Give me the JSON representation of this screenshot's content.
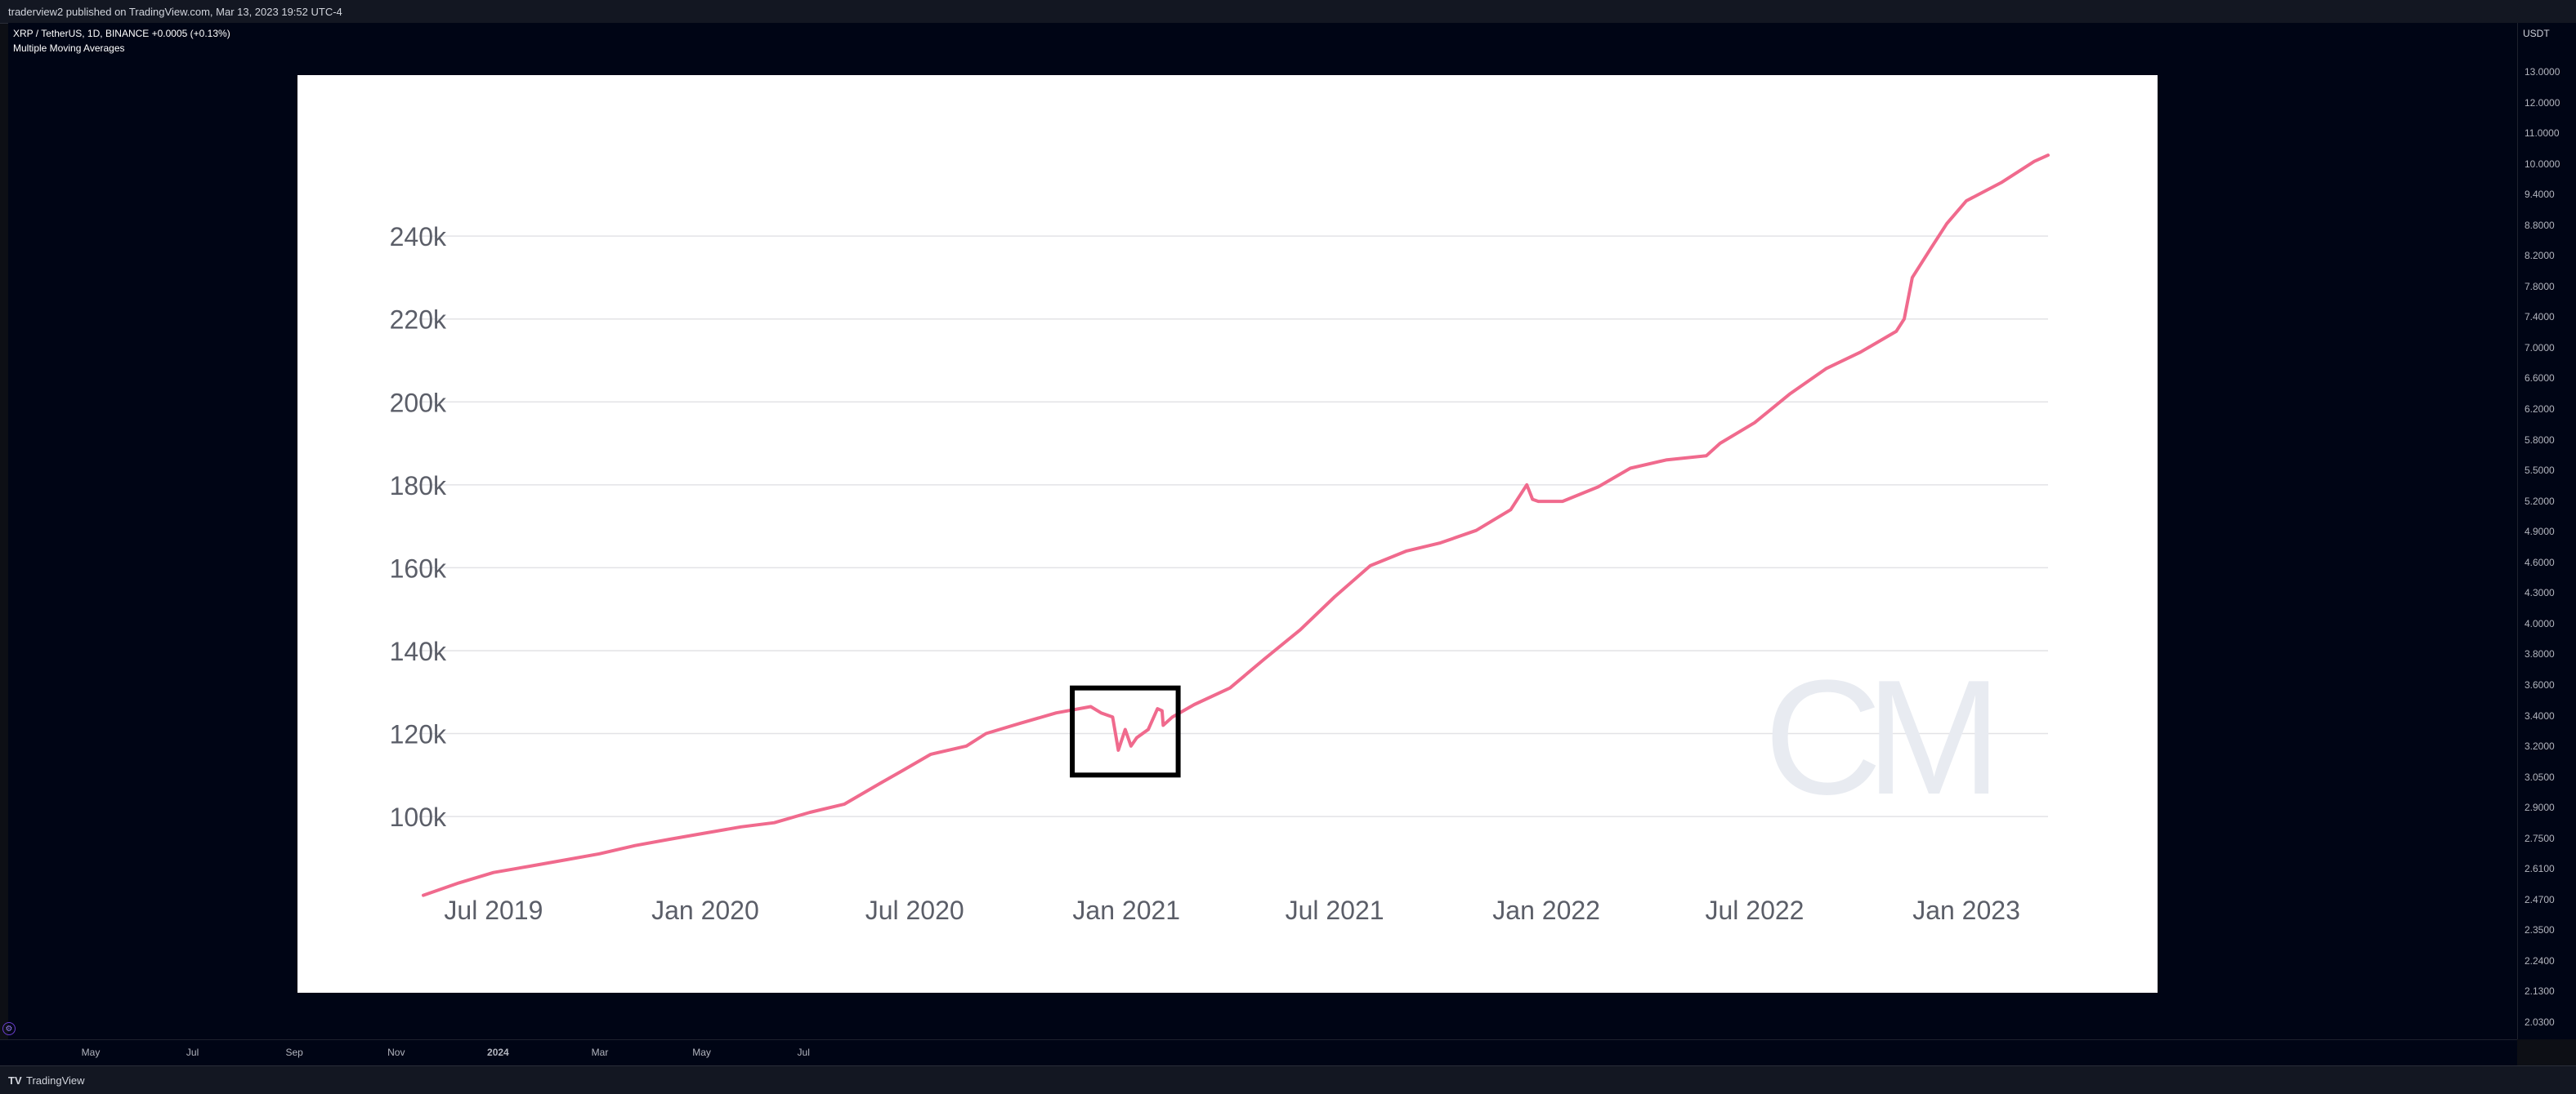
{
  "header": {
    "publish_line": "traderview2 published on TradingView.com, Mar 13, 2023 19:52 UTC-4",
    "symbol_line": "XRP / TetherUS, 1D, BINANCE  +0.0005 (+0.13%)",
    "indicator_line": "Multiple Moving Averages"
  },
  "price_axis": {
    "currency": "USDT",
    "labels": [
      "13.0000",
      "12.0000",
      "11.0000",
      "10.0000",
      "9.4000",
      "8.8000",
      "8.2000",
      "7.8000",
      "7.4000",
      "7.0000",
      "6.6000",
      "6.2000",
      "5.8000",
      "5.5000",
      "5.2000",
      "4.9000",
      "4.6000",
      "4.3000",
      "4.0000",
      "3.8000",
      "3.6000",
      "3.4000",
      "3.2000",
      "3.0500",
      "2.9000",
      "2.7500",
      "2.6100",
      "2.4700",
      "2.3500",
      "2.2400",
      "2.1300",
      "2.0300"
    ]
  },
  "time_axis": {
    "labels": [
      "May",
      "Jul",
      "Sep",
      "Nov",
      "2024",
      "Mar",
      "May",
      "Jul"
    ]
  },
  "footer": {
    "logo": "TV",
    "brand": "TradingView"
  },
  "chart_data": {
    "type": "line",
    "x": [
      "2019-05-01",
      "2019-06-01",
      "2019-07-01",
      "2019-08-01",
      "2019-09-01",
      "2019-10-01",
      "2019-11-01",
      "2019-12-01",
      "2020-01-01",
      "2020-02-01",
      "2020-03-01",
      "2020-04-01",
      "2020-05-01",
      "2020-06-01",
      "2020-06-20",
      "2020-07-15",
      "2020-08-15",
      "2020-09-01",
      "2020-10-01",
      "2020-11-01",
      "2020-12-01",
      "2020-12-10",
      "2020-12-20",
      "2020-12-25",
      "2020-12-31",
      "2021-01-05",
      "2021-01-10",
      "2021-01-20",
      "2021-01-28",
      "2021-02-01",
      "2021-02-02",
      "2021-02-10",
      "2021-03-01",
      "2021-04-01",
      "2021-05-01",
      "2021-06-01",
      "2021-07-01",
      "2021-08-01",
      "2021-09-01",
      "2021-10-01",
      "2021-11-01",
      "2021-12-01",
      "2021-12-15",
      "2021-12-20",
      "2021-12-25",
      "2022-01-15",
      "2022-02-15",
      "2022-03-15",
      "2022-04-15",
      "2022-05-20",
      "2022-06-01",
      "2022-07-01",
      "2022-08-01",
      "2022-09-01",
      "2022-10-01",
      "2022-11-01",
      "2022-11-08",
      "2022-11-15",
      "2022-12-01",
      "2022-12-15",
      "2023-01-01",
      "2023-02-01",
      "2023-03-01",
      "2023-03-13"
    ],
    "values": [
      81000,
      84000,
      86500,
      88000,
      89500,
      91000,
      93000,
      94500,
      96000,
      97500,
      98500,
      101000,
      103000,
      108000,
      111000,
      115000,
      117000,
      120000,
      122500,
      125000,
      126500,
      125000,
      124000,
      116000,
      121000,
      117000,
      119000,
      121000,
      126000,
      125500,
      122000,
      124000,
      127000,
      131000,
      138000,
      145000,
      153000,
      160500,
      164000,
      166000,
      169000,
      174000,
      180000,
      176500,
      176000,
      176000,
      179500,
      184000,
      186000,
      187000,
      190000,
      195000,
      202000,
      208000,
      212000,
      217000,
      220000,
      230000,
      237000,
      243000,
      248500,
      253000,
      258000,
      259500
    ],
    "x_ticks": [
      "Jul 2019",
      "Jan 2020",
      "Jul 2020",
      "Jan 2021",
      "Jul 2021",
      "Jan 2022",
      "Jul 2022",
      "Jan 2023"
    ],
    "y_ticks": [
      "100k",
      "120k",
      "140k",
      "160k",
      "180k",
      "200k",
      "220k",
      "240k"
    ],
    "ylim": [
      76000,
      267000
    ],
    "title": "",
    "xlabel": "",
    "ylabel": "",
    "grid": true,
    "highlight": {
      "x_start": "2020-11-15",
      "x_end": "2021-02-15",
      "y_low": 110000,
      "y_high": 131000
    },
    "watermark": "CM",
    "line_color": "#f06a8d",
    "grid_color": "#e3e3e6",
    "tick_color": "#5b5e68"
  }
}
